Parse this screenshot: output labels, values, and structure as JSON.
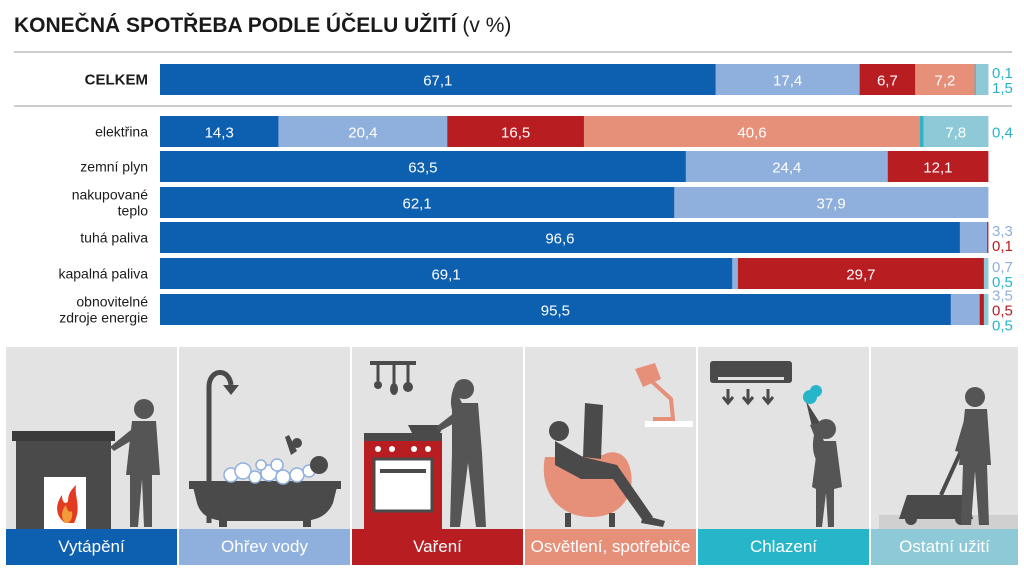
{
  "title": "KONEČNÁ SPOTŘEBA PODLE ÚČELU UŽITÍ",
  "title_unit": "(v %)",
  "colors": {
    "heating": "#0d5fb0",
    "water": "#8fb0dd",
    "cooking": "#b81d22",
    "lighting": "#e6907a",
    "cooling": "#27b5c9",
    "other": "#8dc9d6",
    "panel_bg": "#e3e3e3",
    "silhouette": "#4a4a4a"
  },
  "chart_data": {
    "type": "bar",
    "orientation": "horizontal",
    "stacked": true,
    "title": "KONEČNÁ SPOTŘEBA PODLE ÚČELU UŽITÍ (v %)",
    "xlim": [
      0,
      100
    ],
    "categories": [
      "CELKEM",
      "elektřina",
      "zemní plyn",
      "nakupované teplo",
      "tuhá paliva",
      "kapalná paliva",
      "obnovitelné zdroje energie"
    ],
    "category_lines": [
      [
        "CELKEM"
      ],
      [
        "elektřina"
      ],
      [
        "zemní plyn"
      ],
      [
        "nakupované",
        "teplo"
      ],
      [
        "tuhá paliva"
      ],
      [
        "kapalná paliva"
      ],
      [
        "obnovitelné",
        "zdroje energie"
      ]
    ],
    "series": [
      {
        "name": "Vytápění",
        "color": "#0d5fb0",
        "values": [
          67.1,
          14.3,
          63.5,
          62.1,
          96.6,
          69.1,
          95.5
        ],
        "labels": [
          "67,1",
          "14,3",
          "63,5",
          "62,1",
          "96,6",
          "69,1",
          "95,5"
        ]
      },
      {
        "name": "Ohřev vody",
        "color": "#8fb0dd",
        "values": [
          17.4,
          20.4,
          24.4,
          37.9,
          3.3,
          0.7,
          3.5
        ],
        "labels": [
          "17,4",
          "20,4",
          "24,4",
          "37,9",
          "3,3",
          "0,7",
          "3,5"
        ]
      },
      {
        "name": "Vaření",
        "color": "#b81d22",
        "values": [
          6.7,
          16.5,
          12.1,
          0,
          0.1,
          29.7,
          0.5
        ],
        "labels": [
          "6,7",
          "16,5",
          "12,1",
          "",
          "0,1",
          "29,7",
          "0,5"
        ]
      },
      {
        "name": "Osvětlení, spotřebiče",
        "color": "#e6907a",
        "values": [
          7.2,
          40.6,
          0,
          0,
          0,
          0,
          0
        ],
        "labels": [
          "7,2",
          "40,6",
          "",
          "",
          "",
          "",
          ""
        ]
      },
      {
        "name": "Chlazení",
        "color": "#27b5c9",
        "values": [
          0.1,
          0.4,
          0,
          0,
          0,
          0,
          0
        ],
        "labels": [
          "0,1",
          "0,4",
          "",
          "",
          "",
          "",
          ""
        ]
      },
      {
        "name": "Ostatní užití",
        "color": "#8dc9d6",
        "values": [
          1.5,
          7.8,
          0,
          0,
          0,
          0.5,
          0.5
        ],
        "labels": [
          "1,5",
          "7,8",
          "",
          "",
          "",
          "0,5",
          "0,5"
        ]
      }
    ],
    "legend_position": "bottom"
  },
  "legend": [
    {
      "label": "Vytápění",
      "color": "#0d5fb0",
      "icon": "fireplace-person-icon"
    },
    {
      "label": "Ohřev vody",
      "color": "#8fb0dd",
      "icon": "bathtub-icon"
    },
    {
      "label": "Vaření",
      "color": "#b81d22",
      "icon": "stove-cooking-icon"
    },
    {
      "label": "Osvětlení, spotřebiče",
      "color": "#e6907a",
      "icon": "reading-lamp-icon"
    },
    {
      "label": "Chlazení",
      "color": "#27b5c9",
      "icon": "air-conditioner-icon"
    },
    {
      "label": "Ostatní užití",
      "color": "#8dc9d6",
      "icon": "lawn-mower-icon"
    }
  ]
}
